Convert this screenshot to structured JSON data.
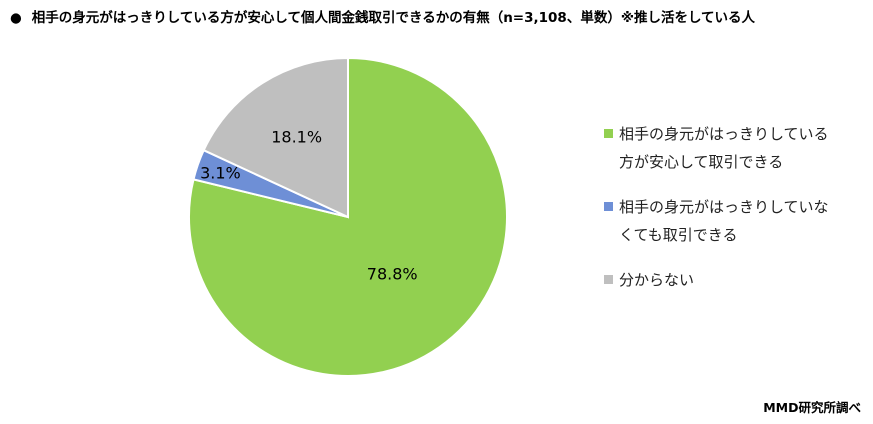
{
  "title": "相手の身元がはっきりしている方が安心して個人間金銭取引できるかの有無（n=3,108、単数）※推し活をしている人",
  "title_bullet": "●",
  "source": "MMD研究所調べ",
  "chart_data": {
    "type": "pie",
    "title": "相手の身元がはっきりしている方が安心して個人間金銭取引できるかの有無（n=3,108、単数）※推し活をしている人",
    "start_angle": "12 o'clock, clockwise",
    "legend_position": "right",
    "slices": [
      {
        "label": "相手の身元がはっきりしている方が安心して取引できる",
        "value": 78.8,
        "display": "78.8%",
        "color": "#92D050"
      },
      {
        "label": "相手の身元がはっきりしていなくても取引できる",
        "value": 3.1,
        "display": "3.1%",
        "color": "#6E8FD6"
      },
      {
        "label": "分からない",
        "value": 18.1,
        "display": "18.1%",
        "color": "#BFBFBF"
      }
    ]
  }
}
